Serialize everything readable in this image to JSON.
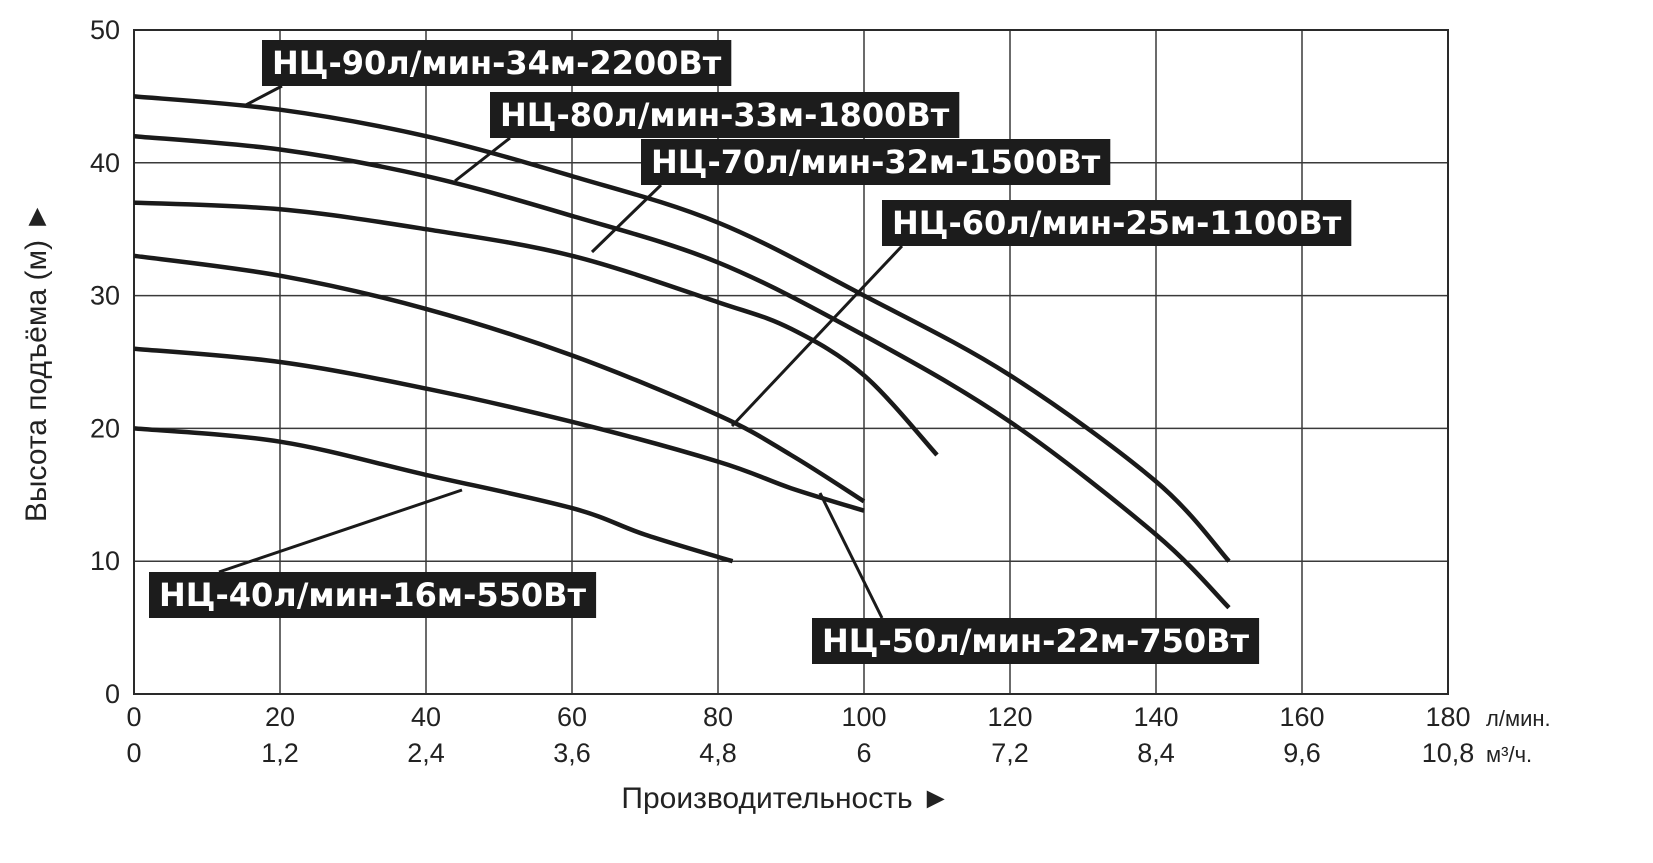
{
  "chart_data": {
    "type": "line",
    "xlabel": "Производительность ►",
    "ylabel": "Высота подъёма (м) ►",
    "x_unit": "л/мин.",
    "x2_unit": "м³/ч.",
    "xlim": [
      0,
      180
    ],
    "ylim": [
      0,
      50
    ],
    "grid": true,
    "x_ticks": [
      "0",
      "20",
      "40",
      "60",
      "80",
      "100",
      "120",
      "140",
      "160",
      "180"
    ],
    "x2_ticks": [
      "0",
      "1,2",
      "2,4",
      "3,6",
      "4,8",
      "6",
      "7,2",
      "8,4",
      "9,6",
      "10,8"
    ],
    "y_ticks": [
      "0",
      "10",
      "20",
      "30",
      "40",
      "50"
    ],
    "series": [
      {
        "name": "НЦ-90л/мин-34м-2200Вт",
        "x": [
          0,
          20,
          40,
          60,
          80,
          100,
          120,
          140,
          150
        ],
        "y": [
          45,
          44,
          42,
          39,
          35.5,
          30,
          24,
          16,
          10
        ]
      },
      {
        "name": "НЦ-80л/мин-33м-1800Вт",
        "x": [
          0,
          20,
          40,
          60,
          80,
          100,
          120,
          140,
          150
        ],
        "y": [
          42,
          41,
          39,
          36,
          32.5,
          27,
          20.5,
          12,
          6.5
        ]
      },
      {
        "name": "НЦ-70л/мин-32м-1500Вт",
        "x": [
          0,
          20,
          40,
          60,
          80,
          90,
          100,
          110
        ],
        "y": [
          37,
          36.5,
          35,
          33,
          29.5,
          27.5,
          24,
          18
        ]
      },
      {
        "name": "НЦ-60л/мин-25м-1100Вт",
        "x": [
          0,
          20,
          40,
          60,
          80,
          90,
          100
        ],
        "y": [
          33,
          31.5,
          29,
          25.5,
          21,
          18,
          14.5
        ]
      },
      {
        "name": "НЦ-50л/мин-22м-750Вт",
        "x": [
          0,
          20,
          40,
          60,
          80,
          90,
          100
        ],
        "y": [
          26,
          25,
          23,
          20.5,
          17.5,
          15.5,
          13.8
        ]
      },
      {
        "name": "НЦ-40л/мин-16м-550Вт",
        "x": [
          0,
          20,
          40,
          60,
          70,
          82
        ],
        "y": [
          20,
          19,
          16.5,
          14,
          12,
          10
        ]
      }
    ]
  }
}
